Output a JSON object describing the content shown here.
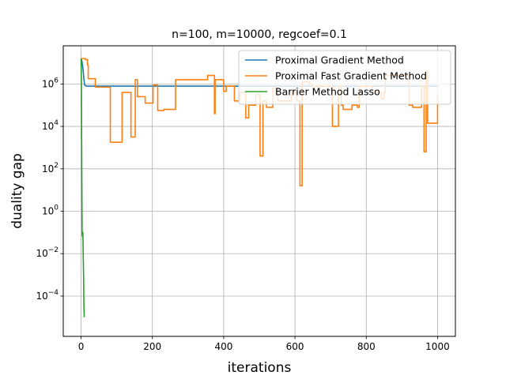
{
  "chart_data": {
    "type": "line",
    "title": "n=100, m=10000, regcoef=0.1",
    "xlabel": "iterations",
    "ylabel": "duality gap",
    "xlim": [
      -50,
      1050
    ],
    "ylim": [
      -5.9,
      7.8
    ],
    "yscale": "log",
    "grid": true,
    "legend_position": "top-right",
    "x_ticks": [
      {
        "value": 0,
        "label": "0"
      },
      {
        "value": 200,
        "label": "200"
      },
      {
        "value": 400,
        "label": "400"
      },
      {
        "value": 600,
        "label": "600"
      },
      {
        "value": 800,
        "label": "800"
      },
      {
        "value": 1000,
        "label": "1000"
      }
    ],
    "y_ticks": [
      {
        "value": -4,
        "base": "10",
        "exp": "−4"
      },
      {
        "value": -2,
        "base": "10",
        "exp": "−2"
      },
      {
        "value": 0,
        "base": "10",
        "exp": "0"
      },
      {
        "value": 2,
        "base": "10",
        "exp": "2"
      },
      {
        "value": 4,
        "base": "10",
        "exp": "4"
      },
      {
        "value": 6,
        "base": "10",
        "exp": "6"
      }
    ],
    "series": [
      {
        "name": "Proximal Gradient Method",
        "color": "#1f77b4",
        "step": false,
        "x": [
          0,
          2,
          4,
          6,
          8,
          10,
          15,
          20,
          40,
          100,
          200,
          400,
          600,
          800,
          1000
        ],
        "y": [
          7.2,
          7.1,
          6.9,
          6.6,
          6.2,
          5.95,
          5.9,
          5.9,
          5.9,
          5.9,
          5.9,
          5.9,
          5.9,
          5.9,
          5.9
        ]
      },
      {
        "name": "Proximal Fast Gradient Method",
        "color": "#ff7f0e",
        "step": true,
        "x": [
          0,
          2,
          12,
          18,
          20,
          22,
          40,
          70,
          78,
          82,
          110,
          115,
          135,
          140,
          150,
          152,
          155,
          158,
          178,
          180,
          195,
          202,
          205,
          215,
          220,
          232,
          238,
          255,
          262,
          265,
          270,
          275,
          282,
          286,
          290,
          296,
          300,
          325,
          330,
          350,
          355,
          360,
          365,
          370,
          374,
          376,
          380,
          395,
          400,
          403,
          407,
          412,
          418,
          422,
          430,
          435,
          440,
          446,
          448,
          460,
          462,
          470,
          478,
          490,
          500,
          502,
          505,
          510,
          515,
          520,
          525,
          530,
          538,
          542,
          552,
          558,
          562,
          565,
          570,
          580,
          590,
          605,
          612,
          614,
          617,
          620,
          630,
          640,
          650,
          660,
          664,
          672,
          680,
          688,
          697,
          700,
          705,
          720,
          722,
          725,
          730,
          733,
          735,
          745,
          748,
          752,
          760,
          768,
          770,
          775,
          780,
          785,
          790,
          800,
          805,
          808,
          812,
          818,
          822,
          825,
          838,
          842,
          845,
          850,
          853,
          857,
          870,
          880,
          890,
          900,
          910,
          920,
          925,
          930,
          940,
          950,
          955,
          960,
          962,
          968,
          972,
          975,
          990,
          1000
        ],
        "y": [
          7.2,
          7.2,
          7.15,
          6.9,
          6.25,
          6.25,
          5.85,
          5.85,
          5.85,
          3.25,
          3.25,
          5.6,
          5.6,
          3.5,
          3.5,
          6.2,
          6.2,
          5.4,
          5.4,
          5.1,
          5.1,
          5.95,
          5.95,
          4.75,
          4.75,
          4.8,
          4.8,
          4.8,
          4.8,
          6.2,
          6.2,
          6.2,
          6.2,
          6.2,
          6.2,
          6.2,
          6.2,
          6.2,
          6.2,
          6.2,
          6.4,
          6.4,
          6.4,
          6.4,
          4.6,
          6.2,
          6.2,
          6.2,
          5.65,
          5.65,
          5.9,
          5.9,
          5.9,
          5.9,
          5.2,
          5.2,
          5.2,
          5.6,
          5.6,
          5.6,
          4.4,
          5.0,
          5.0,
          5.5,
          5.5,
          2.6,
          2.6,
          5.2,
          5.2,
          4.9,
          4.9,
          4.9,
          5.8,
          5.8,
          5.2,
          5.2,
          5.2,
          5.2,
          5.2,
          5.2,
          5.6,
          5.2,
          5.2,
          1.2,
          1.2,
          6.1,
          6.1,
          6.0,
          5.9,
          5.9,
          5.9,
          5.9,
          5.9,
          5.9,
          5.9,
          5.9,
          4.0,
          4.0,
          5.9,
          5.9,
          5.0,
          5.0,
          4.8,
          4.8,
          4.8,
          4.8,
          5.0,
          5.0,
          5.0,
          4.9,
          5.9,
          5.9,
          5.9,
          5.9,
          5.9,
          5.9,
          5.9,
          5.6,
          5.6,
          5.6,
          5.6,
          5.3,
          5.3,
          5.6,
          6.4,
          6.4,
          6.4,
          6.4,
          6.4,
          6.4,
          6.4,
          5.0,
          5.0,
          4.9,
          4.9,
          4.9,
          5.9,
          5.9,
          2.8,
          6.6,
          4.15,
          4.15,
          4.15,
          5.45
        ]
      },
      {
        "name": "Barrier Method Lasso",
        "color": "#2ca02c",
        "step": false,
        "x": [
          0,
          1,
          2,
          3,
          4,
          5,
          6,
          7,
          8,
          9
        ],
        "y": [
          7.2,
          6.0,
          2.0,
          -1.1,
          -1.2,
          -1.0,
          -2.0,
          -3.0,
          -4.5,
          -5.0
        ]
      }
    ]
  }
}
